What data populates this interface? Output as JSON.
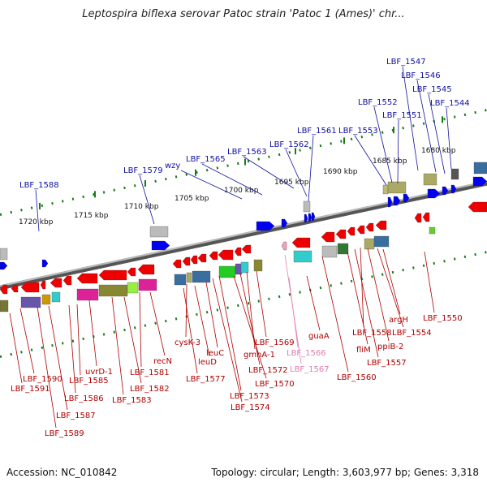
{
  "title": "Leptospira biflexa serovar Patoc strain 'Patoc 1 (Ames)' chr...",
  "accession": "Accession: NC_010842",
  "summary": "Topology: circular; Length: 3,603,977 bp; Genes: 3,318",
  "colors": {
    "top_label": "#1010a0",
    "bottom_label": "#b00000",
    "pseudo_label": "#e080b0",
    "forward_gene": "#0000ee",
    "reverse_gene": "#ee0000",
    "tick": "#1a7a1a",
    "backbone": "#777777"
  },
  "scale_ticks": [
    {
      "label": "1720 kbp"
    },
    {
      "label": "1715 kbp"
    },
    {
      "label": "1710 kbp"
    },
    {
      "label": "1705 kbp"
    },
    {
      "label": "1700 kbp"
    },
    {
      "label": "1695 kbp"
    },
    {
      "label": "1690 kbp"
    },
    {
      "label": "1685 kbp"
    },
    {
      "label": "1680 kbp"
    }
  ],
  "top_labels": [
    {
      "text": "LBF_1547"
    },
    {
      "text": "LBF_1546"
    },
    {
      "text": "LBF_1545"
    },
    {
      "text": "LBF_1544"
    },
    {
      "text": "LBF_1552"
    },
    {
      "text": "LBF_1551"
    },
    {
      "text": "LBF_1561"
    },
    {
      "text": "LBF_1553"
    },
    {
      "text": "LBF_1562"
    },
    {
      "text": "LBF_1563"
    },
    {
      "text": "LBF_1565"
    },
    {
      "text": "wzy"
    },
    {
      "text": "LBF_1579"
    },
    {
      "text": "LBF_1588"
    }
  ],
  "bottom_labels": [
    {
      "text": "LBF_1550"
    },
    {
      "text": "argH"
    },
    {
      "text": "LBF_1554"
    },
    {
      "text": "LBF_1558"
    },
    {
      "text": "ppiB-2"
    },
    {
      "text": "fliM"
    },
    {
      "text": "LBF_1557"
    },
    {
      "text": "LBF_1560"
    },
    {
      "text": "guaA"
    },
    {
      "text": "LBF_1566"
    },
    {
      "text": "LBF_1567"
    },
    {
      "text": "LBF_1569"
    },
    {
      "text": "gmhA-1"
    },
    {
      "text": "LBF_1572"
    },
    {
      "text": "LBF_1570"
    },
    {
      "text": "cysK-3"
    },
    {
      "text": "leuC"
    },
    {
      "text": "leuD"
    },
    {
      "text": "LBF_1577"
    },
    {
      "text": "LBF_1573"
    },
    {
      "text": "LBF_1574"
    },
    {
      "text": "recN"
    },
    {
      "text": "LBF_1581"
    },
    {
      "text": "LBF_1582"
    },
    {
      "text": "LBF_1583"
    },
    {
      "text": "uvrD-1"
    },
    {
      "text": "LBF_1585"
    },
    {
      "text": "LBF_1586"
    },
    {
      "text": "LBF_1590"
    },
    {
      "text": "LBF_1591"
    },
    {
      "text": "LBF_1587"
    },
    {
      "text": "LBF_1589"
    }
  ]
}
